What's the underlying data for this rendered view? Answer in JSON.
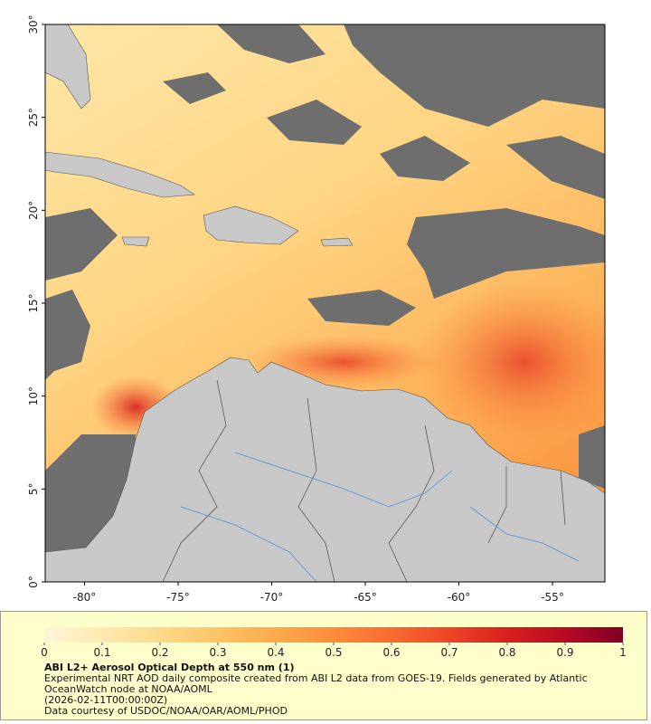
{
  "map": {
    "xlim": [
      -82.1,
      -52.2
    ],
    "ylim": [
      0,
      30
    ],
    "xticks": [
      {
        "value": -80,
        "label": "-80°"
      },
      {
        "value": -75,
        "label": "-75°"
      },
      {
        "value": -70,
        "label": "-70°"
      },
      {
        "value": -65,
        "label": "-65°"
      },
      {
        "value": -60,
        "label": "-60°"
      },
      {
        "value": -55,
        "label": "-55°"
      }
    ],
    "yticks": [
      {
        "value": 0,
        "label": "0°"
      },
      {
        "value": 5,
        "label": "5°"
      },
      {
        "value": 10,
        "label": "10°"
      },
      {
        "value": 15,
        "label": "15°"
      },
      {
        "value": 20,
        "label": "20°"
      },
      {
        "value": 25,
        "label": "25°"
      },
      {
        "value": 30,
        "label": "30°"
      }
    ]
  },
  "colorbar": {
    "lim": [
      0,
      1
    ],
    "ticks": [
      0,
      0.1,
      0.2,
      0.3,
      0.4,
      0.5,
      0.6,
      0.7,
      0.8,
      0.9,
      1
    ],
    "colors": [
      "#fff5d8",
      "#ffe9b0",
      "#fed98a",
      "#fec466",
      "#fdaa4c",
      "#fc8c3b",
      "#f86b30",
      "#ee4428",
      "#d8201f",
      "#b80a24",
      "#800026"
    ]
  },
  "caption": {
    "title": "ABI L2+ Aerosol Optical Depth at 550 nm (1)",
    "description": "Experimental NRT AOD daily composite created from ABI L2 data from GOES-19. Fields generated by Atlantic OceanWatch node at NOAA/AOML",
    "timestamp": "(2026-02-11T00:00:00Z)",
    "credit": "Data courtesy of USDOC/NOAA/OAR/AOML/PHOD"
  }
}
